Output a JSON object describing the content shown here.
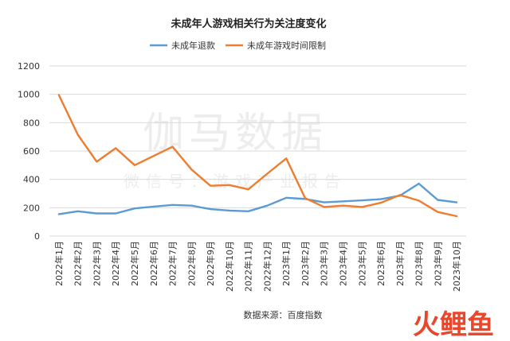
{
  "chart_data": {
    "type": "line",
    "title": "未成年人游戏相关行为关注度变化",
    "xlabel": "",
    "ylabel": "",
    "ylim": [
      0,
      1200
    ],
    "yticks": [
      0,
      200,
      400,
      600,
      800,
      1000,
      1200
    ],
    "grid": "horizontal",
    "legend": "top-center",
    "categories": [
      "2022年1月",
      "2022年2月",
      "2022年3月",
      "2022年4月",
      "2022年5月",
      "2022年6月",
      "2022年7月",
      "2022年8月",
      "2022年9月",
      "2022年10月",
      "2022年11月",
      "2022年12月",
      "2023年1月",
      "2023年2月",
      "2023年3月",
      "2023年4月",
      "2023年5月",
      "2023年6月",
      "2023年7月",
      "2023年8月",
      "2023年9月",
      "2023年10月"
    ],
    "series": [
      {
        "name": "未成年退款",
        "color": "#5b9bd5",
        "values": [
          155,
          175,
          160,
          160,
          195,
          208,
          220,
          215,
          190,
          180,
          175,
          215,
          270,
          262,
          238,
          245,
          252,
          260,
          285,
          370,
          255,
          238
        ]
      },
      {
        "name": "未成年游戏时间限制",
        "color": "#ed7d31",
        "values": [
          995,
          715,
          525,
          620,
          500,
          565,
          630,
          470,
          355,
          360,
          330,
          440,
          548,
          268,
          205,
          215,
          205,
          235,
          290,
          250,
          170,
          140
        ]
      }
    ]
  },
  "source": "数据来源：百度指数",
  "watermark": {
    "main": "伽马数据",
    "sub": "微信号：游戏产业报告",
    "corner": "火鲤鱼"
  },
  "colors": {
    "axis": "#d9d9d9",
    "grid": "#d9d9d9",
    "watermark": "#bfbfbf",
    "corner": "#e8472c"
  }
}
